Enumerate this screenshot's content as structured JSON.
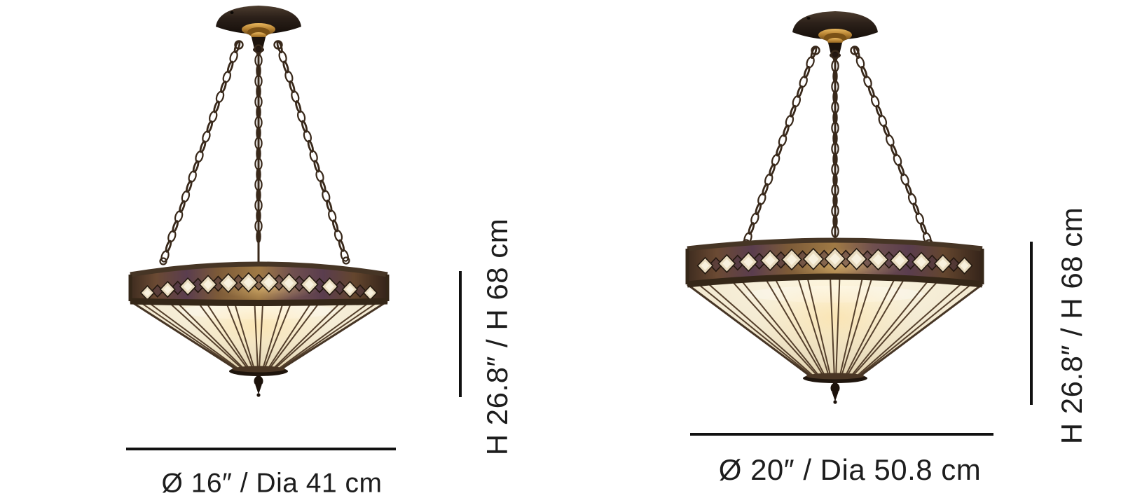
{
  "image": {
    "background": "#ffffff",
    "subject": "tiffany-style-pendant-ceiling-lamp-dimensions"
  },
  "products": [
    {
      "illustration": "tiffany-pendant-lamp-diamond-band",
      "diameter_label": "Ø 16″ / Dia 41 cm",
      "height_label": "H 26.8″ / H 68 cm"
    },
    {
      "illustration": "tiffany-pendant-lamp-diamond-band",
      "diameter_label": "Ø 20″ / Dia 50.8 cm",
      "height_label": "H 26.8″ / H 68 cm"
    }
  ],
  "colors": {
    "background": "#ffffff",
    "text": "#1d1d1d",
    "dimension_line": "#111111",
    "bronze_dark": "#38281a",
    "bronze_rim": "#463525",
    "bronze_rim_bottom": "#352718",
    "brass": "#b07c2e",
    "glass_cream": "#f3ead2",
    "glass_diamond": "#e9dcc0",
    "glass_diamond_inner": "#f9f3e1",
    "band_purple": "#5a3d4e",
    "band_amber": "#a07a45",
    "rib": "#55402c",
    "glow": "#ffd98a"
  }
}
